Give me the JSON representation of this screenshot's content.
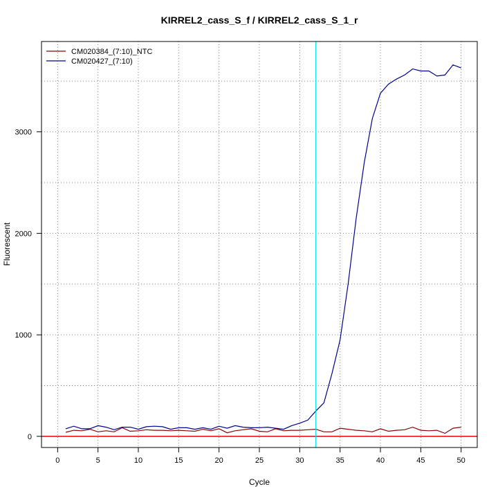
{
  "chart_data": {
    "type": "line",
    "title": "KIRREL2_cass_S_f / KIRREL2_cass_S_1_r",
    "xlabel": "Cycle",
    "ylabel": "Fluorescent",
    "xlim": [
      -2,
      52
    ],
    "ylim": [
      -110,
      3890
    ],
    "x_ticks": [
      0,
      5,
      10,
      15,
      20,
      25,
      30,
      35,
      40,
      45,
      50
    ],
    "y_ticks": [
      0,
      1000,
      2000,
      3000
    ],
    "grid": true,
    "legend_position": "top-left",
    "threshold_line": {
      "x": 32,
      "color": "#00e5e5"
    },
    "baseline": {
      "y": 0,
      "color": "#e00000"
    },
    "x": [
      1,
      2,
      3,
      4,
      5,
      6,
      7,
      8,
      9,
      10,
      11,
      12,
      13,
      14,
      15,
      16,
      17,
      18,
      19,
      20,
      21,
      22,
      23,
      24,
      25,
      26,
      27,
      28,
      29,
      30,
      31,
      32,
      33,
      34,
      35,
      36,
      37,
      38,
      39,
      40,
      41,
      42,
      43,
      44,
      45,
      46,
      47,
      48,
      49,
      50
    ],
    "series": [
      {
        "name": "CM020384_(7:10)_NTC",
        "color": "#8b0000",
        "values": [
          40,
          60,
          55,
          70,
          45,
          55,
          45,
          85,
          50,
          55,
          65,
          60,
          60,
          55,
          60,
          55,
          50,
          70,
          55,
          75,
          35,
          55,
          65,
          75,
          50,
          45,
          75,
          55,
          60,
          60,
          65,
          70,
          45,
          45,
          80,
          70,
          60,
          55,
          45,
          75,
          50,
          60,
          65,
          90,
          60,
          55,
          60,
          30,
          80,
          90
        ]
      },
      {
        "name": "CM020427_(7:10)",
        "color": "#00008b",
        "values": [
          75,
          100,
          75,
          75,
          105,
          90,
          65,
          90,
          90,
          70,
          95,
          100,
          95,
          70,
          85,
          85,
          70,
          85,
          70,
          100,
          80,
          105,
          90,
          85,
          85,
          90,
          80,
          70,
          105,
          130,
          160,
          250,
          330,
          620,
          950,
          1500,
          2150,
          2700,
          3130,
          3380,
          3470,
          3520,
          3560,
          3620,
          3600,
          3600,
          3550,
          3560,
          3660,
          3630
        ]
      }
    ]
  }
}
